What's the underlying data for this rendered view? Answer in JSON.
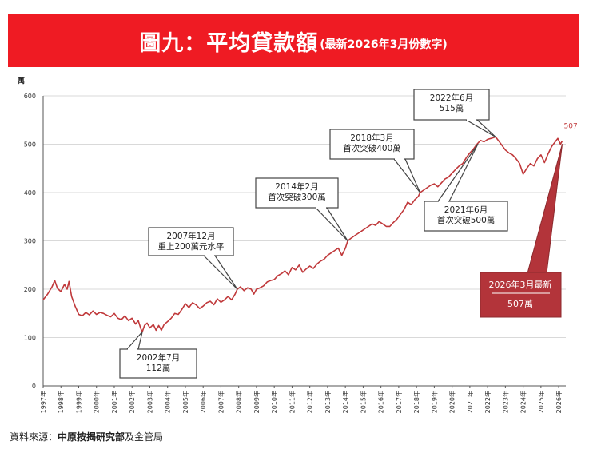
{
  "header": {
    "title": "圖九：平均貸款額",
    "subtitle": "(最新2026年3月份數字)"
  },
  "colors": {
    "banner": "#ef1b23",
    "line": "#c0393b",
    "callout_dark": "#b3343a",
    "grid": "#d9d9d9",
    "box_border": "#444444"
  },
  "chart_data": {
    "type": "line",
    "ylabel": "萬",
    "ylim": [
      0,
      600
    ],
    "yticks": [
      "0",
      "100",
      "200",
      "300",
      "400",
      "500",
      "600"
    ],
    "xlim": [
      1997,
      2026.4
    ],
    "xticks": [
      "1997年",
      "1998年",
      "1999年",
      "2000年",
      "2001年",
      "2002年",
      "2003年",
      "2004年",
      "2005年",
      "2006年",
      "2007年",
      "2008年",
      "2009年",
      "2010年",
      "2011年",
      "2012年",
      "2013年",
      "2014年",
      "2015年",
      "2016年",
      "2017年",
      "2018年",
      "2019年",
      "2020年",
      "2021年",
      "2022年",
      "2023年",
      "2024年",
      "2025年",
      "2026年"
    ],
    "grid": "horizontal",
    "series": [
      {
        "points": [
          [
            1997.0,
            178
          ],
          [
            1997.25,
            190
          ],
          [
            1997.5,
            205
          ],
          [
            1997.65,
            218
          ],
          [
            1997.8,
            202
          ],
          [
            1998.0,
            195
          ],
          [
            1998.2,
            210
          ],
          [
            1998.35,
            200
          ],
          [
            1998.45,
            216
          ],
          [
            1998.6,
            185
          ],
          [
            1998.8,
            165
          ],
          [
            1999.0,
            148
          ],
          [
            1999.2,
            145
          ],
          [
            1999.4,
            152
          ],
          [
            1999.6,
            147
          ],
          [
            1999.8,
            155
          ],
          [
            2000.0,
            148
          ],
          [
            2000.2,
            152
          ],
          [
            2000.4,
            150
          ],
          [
            2000.6,
            146
          ],
          [
            2000.8,
            143
          ],
          [
            2001.0,
            150
          ],
          [
            2001.2,
            140
          ],
          [
            2001.4,
            137
          ],
          [
            2001.6,
            145
          ],
          [
            2001.8,
            135
          ],
          [
            2002.0,
            140
          ],
          [
            2002.2,
            128
          ],
          [
            2002.35,
            135
          ],
          [
            2002.5,
            118
          ],
          [
            2002.58,
            112
          ],
          [
            2002.7,
            125
          ],
          [
            2002.85,
            130
          ],
          [
            2003.0,
            120
          ],
          [
            2003.2,
            127
          ],
          [
            2003.35,
            115
          ],
          [
            2003.5,
            125
          ],
          [
            2003.65,
            115
          ],
          [
            2003.8,
            127
          ],
          [
            2004.0,
            133
          ],
          [
            2004.2,
            140
          ],
          [
            2004.4,
            150
          ],
          [
            2004.6,
            148
          ],
          [
            2004.8,
            158
          ],
          [
            2005.0,
            170
          ],
          [
            2005.2,
            162
          ],
          [
            2005.4,
            172
          ],
          [
            2005.6,
            168
          ],
          [
            2005.8,
            160
          ],
          [
            2006.0,
            165
          ],
          [
            2006.2,
            172
          ],
          [
            2006.4,
            175
          ],
          [
            2006.6,
            168
          ],
          [
            2006.8,
            180
          ],
          [
            2007.0,
            173
          ],
          [
            2007.2,
            178
          ],
          [
            2007.4,
            185
          ],
          [
            2007.6,
            178
          ],
          [
            2007.8,
            190
          ],
          [
            2007.92,
            200
          ],
          [
            2008.1,
            205
          ],
          [
            2008.3,
            197
          ],
          [
            2008.5,
            203
          ],
          [
            2008.7,
            200
          ],
          [
            2008.85,
            190
          ],
          [
            2009.0,
            200
          ],
          [
            2009.2,
            203
          ],
          [
            2009.4,
            207
          ],
          [
            2009.6,
            215
          ],
          [
            2009.8,
            218
          ],
          [
            2010.0,
            220
          ],
          [
            2010.2,
            228
          ],
          [
            2010.4,
            232
          ],
          [
            2010.6,
            238
          ],
          [
            2010.8,
            230
          ],
          [
            2011.0,
            245
          ],
          [
            2011.2,
            240
          ],
          [
            2011.4,
            250
          ],
          [
            2011.6,
            235
          ],
          [
            2011.8,
            242
          ],
          [
            2012.0,
            248
          ],
          [
            2012.2,
            243
          ],
          [
            2012.4,
            252
          ],
          [
            2012.6,
            258
          ],
          [
            2012.8,
            262
          ],
          [
            2013.0,
            270
          ],
          [
            2013.2,
            275
          ],
          [
            2013.4,
            280
          ],
          [
            2013.6,
            285
          ],
          [
            2013.8,
            270
          ],
          [
            2014.0,
            285
          ],
          [
            2014.13,
            300
          ],
          [
            2014.3,
            305
          ],
          [
            2014.5,
            310
          ],
          [
            2014.7,
            315
          ],
          [
            2014.9,
            320
          ],
          [
            2015.1,
            325
          ],
          [
            2015.3,
            330
          ],
          [
            2015.5,
            335
          ],
          [
            2015.7,
            332
          ],
          [
            2015.9,
            340
          ],
          [
            2016.1,
            335
          ],
          [
            2016.3,
            330
          ],
          [
            2016.5,
            330
          ],
          [
            2016.7,
            338
          ],
          [
            2016.9,
            345
          ],
          [
            2017.1,
            355
          ],
          [
            2017.3,
            365
          ],
          [
            2017.5,
            380
          ],
          [
            2017.7,
            375
          ],
          [
            2017.9,
            385
          ],
          [
            2018.1,
            392
          ],
          [
            2018.2,
            400
          ],
          [
            2018.4,
            405
          ],
          [
            2018.6,
            410
          ],
          [
            2018.8,
            415
          ],
          [
            2019.0,
            418
          ],
          [
            2019.2,
            412
          ],
          [
            2019.4,
            420
          ],
          [
            2019.6,
            428
          ],
          [
            2019.8,
            432
          ],
          [
            2020.0,
            440
          ],
          [
            2020.2,
            448
          ],
          [
            2020.4,
            455
          ],
          [
            2020.6,
            460
          ],
          [
            2020.8,
            472
          ],
          [
            2021.0,
            482
          ],
          [
            2021.2,
            490
          ],
          [
            2021.4,
            500
          ],
          [
            2021.6,
            508
          ],
          [
            2021.8,
            505
          ],
          [
            2022.0,
            510
          ],
          [
            2022.2,
            512
          ],
          [
            2022.45,
            515
          ],
          [
            2022.6,
            508
          ],
          [
            2022.8,
            498
          ],
          [
            2023.0,
            488
          ],
          [
            2023.2,
            482
          ],
          [
            2023.4,
            478
          ],
          [
            2023.6,
            470
          ],
          [
            2023.8,
            460
          ],
          [
            2024.0,
            438
          ],
          [
            2024.2,
            450
          ],
          [
            2024.4,
            460
          ],
          [
            2024.6,
            455
          ],
          [
            2024.8,
            470
          ],
          [
            2025.0,
            478
          ],
          [
            2025.2,
            462
          ],
          [
            2025.4,
            480
          ],
          [
            2025.6,
            495
          ],
          [
            2025.8,
            505
          ],
          [
            2025.95,
            512
          ],
          [
            2026.1,
            500
          ],
          [
            2026.2,
            507
          ]
        ]
      }
    ],
    "annotations": [
      {
        "lines": [
          "2002年7月",
          "112萬"
        ],
        "x": 2002.58,
        "y": 112
      },
      {
        "lines": [
          "2007年12月",
          "重上200萬元水平"
        ],
        "x": 2007.92,
        "y": 200
      },
      {
        "lines": [
          "2014年2月",
          "首次突破300萬"
        ],
        "x": 2014.13,
        "y": 300
      },
      {
        "lines": [
          "2018年3月",
          "首次突破400萬"
        ],
        "x": 2018.2,
        "y": 400
      },
      {
        "lines": [
          "2021年6月",
          "首次突破500萬"
        ],
        "x": 2021.45,
        "y": 500
      },
      {
        "lines": [
          "2022年6月",
          "515萬"
        ],
        "x": 2022.45,
        "y": 515
      }
    ],
    "latest_label": "507",
    "latest_callout": {
      "lines": [
        "2026年3月最新",
        "507萬"
      ],
      "x": 2026.2,
      "y": 507
    }
  },
  "footer": {
    "source_prefix": "資料來源：",
    "source_bold": "中原按揭研究部",
    "source_suffix": "及金管局"
  }
}
